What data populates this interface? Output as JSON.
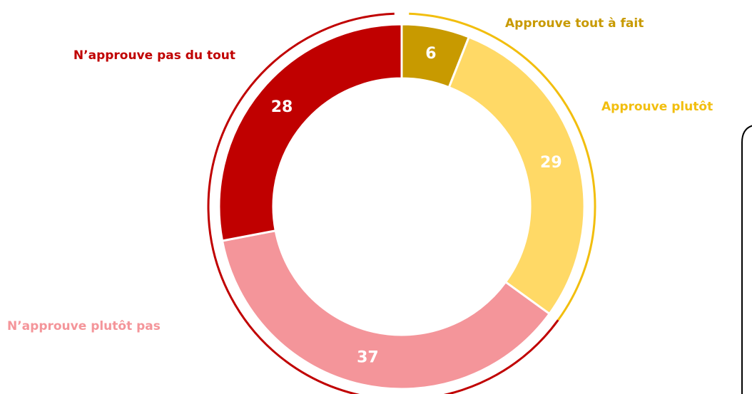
{
  "chart_data": {
    "type": "donut",
    "categories": [
      "Approuve tout à fait",
      "Approuve plutôt",
      "N’approuve plutôt pas",
      "N’approuve pas du tout"
    ],
    "values": [
      6,
      29,
      37,
      28
    ],
    "colors": [
      "#C89A00",
      "#FFD966",
      "#F4959A",
      "#C00000"
    ],
    "label_colors": [
      "#C89A00",
      "#F2BE0E",
      "#F4959A",
      "#C00000"
    ]
  }
}
